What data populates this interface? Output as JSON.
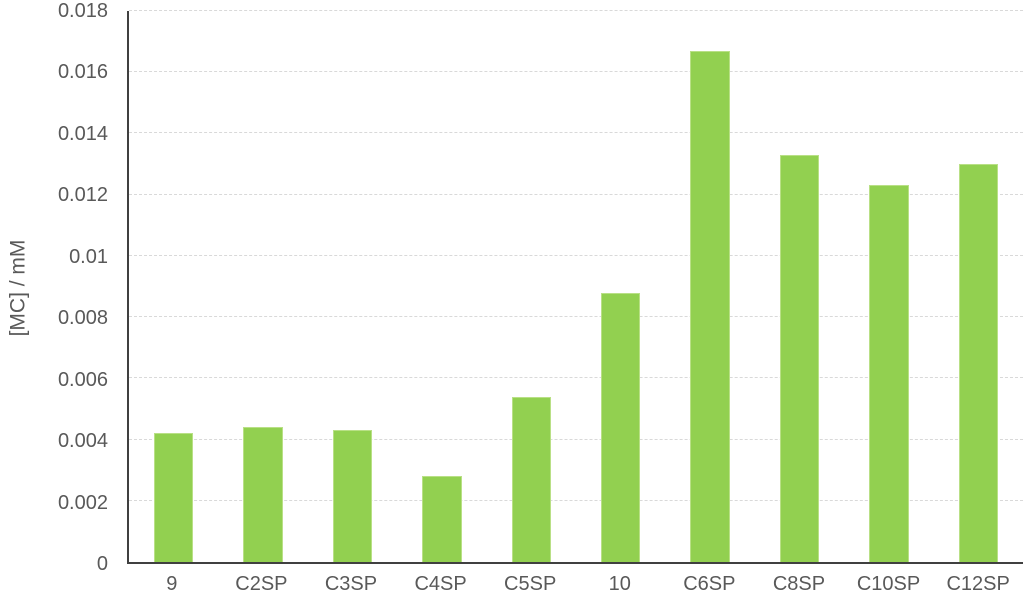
{
  "chart_data": {
    "type": "bar",
    "title": "",
    "xlabel": "",
    "ylabel": "[MC] / mM",
    "categories": [
      "9",
      "C2SP",
      "C3SP",
      "C4SP",
      "C5SP",
      "10",
      "C6SP",
      "C8SP",
      "C10SP",
      "C12SP"
    ],
    "values": [
      0.0042,
      0.0044,
      0.0043,
      0.0028,
      0.0054,
      0.0088,
      0.0167,
      0.0133,
      0.0123,
      0.013
    ],
    "ylim": [
      0,
      0.018
    ],
    "yticks": [
      0,
      0.002,
      0.004,
      0.006,
      0.008,
      0.01,
      0.012,
      0.014,
      0.016,
      0.018
    ],
    "ytick_labels": [
      "0",
      "0.002",
      "0.004",
      "0.006",
      "0.008",
      "0.01",
      "0.012",
      "0.014",
      "0.016",
      "0.018"
    ],
    "grid": true,
    "legend": "none",
    "colors": {
      "bar_fill": "#92d050",
      "bar_border": "#b9e086",
      "axis_line": "#404040",
      "gridline": "#d9d9d9",
      "tick_text": "#595959"
    }
  }
}
